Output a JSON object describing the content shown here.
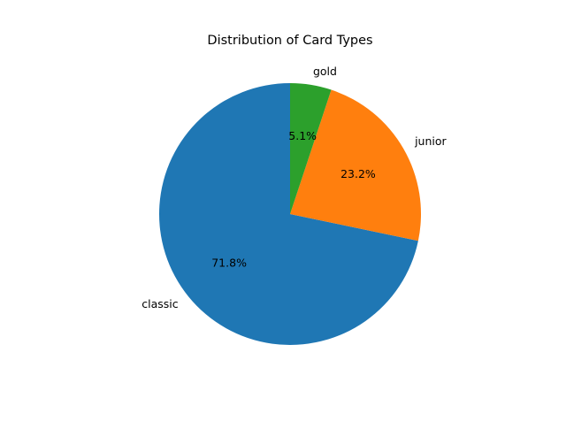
{
  "chart_data": {
    "type": "pie",
    "title": "Distribution of Card Types",
    "labels": [
      "classic",
      "junior",
      "gold"
    ],
    "values": [
      71.8,
      23.2,
      5.1
    ],
    "autopct": [
      "71.8%",
      "23.2%",
      "5.1%"
    ],
    "colors": [
      "#1f77b4",
      "#ff7f0e",
      "#2ca02c"
    ],
    "start_angle_deg": 90,
    "direction": "counterclockwise",
    "legend": "none"
  }
}
